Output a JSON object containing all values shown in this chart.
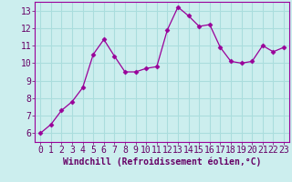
{
  "x": [
    0,
    1,
    2,
    3,
    4,
    5,
    6,
    7,
    8,
    9,
    10,
    11,
    12,
    13,
    14,
    15,
    16,
    17,
    18,
    19,
    20,
    21,
    22,
    23
  ],
  "y": [
    6.0,
    6.5,
    7.3,
    7.8,
    8.6,
    10.5,
    11.35,
    10.4,
    9.5,
    9.5,
    9.7,
    9.8,
    11.9,
    13.2,
    12.7,
    12.1,
    12.2,
    10.9,
    10.1,
    10.0,
    10.1,
    11.0,
    10.65,
    10.9
  ],
  "line_color": "#990099",
  "marker": "D",
  "marker_size": 2.5,
  "bg_color": "#cceeee",
  "grid_color": "#aadddd",
  "xlabel": "Windchill (Refroidissement éolien,°C)",
  "xlabel_fontsize": 7,
  "tick_fontsize": 7,
  "ylim": [
    5.5,
    13.5
  ],
  "xlim": [
    -0.5,
    23.5
  ],
  "yticks": [
    6,
    7,
    8,
    9,
    10,
    11,
    12,
    13
  ],
  "xticks": [
    0,
    1,
    2,
    3,
    4,
    5,
    6,
    7,
    8,
    9,
    10,
    11,
    12,
    13,
    14,
    15,
    16,
    17,
    18,
    19,
    20,
    21,
    22,
    23
  ],
  "spine_color": "#9999aa",
  "axis_color": "#990099"
}
